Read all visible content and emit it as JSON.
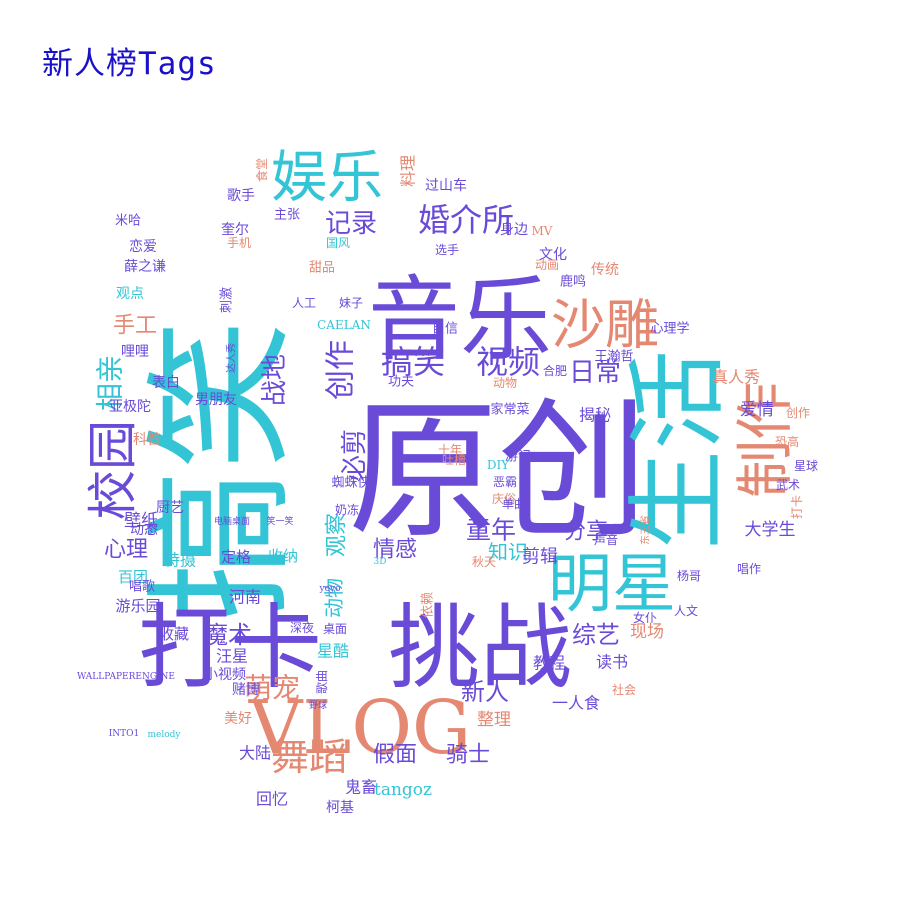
{
  "title": "新人榜Tags",
  "colors": {
    "title": "#1a10c8",
    "purple": "#6a4bd8",
    "cyan": "#33c4d6",
    "salmon": "#e58872"
  },
  "words": [
    {
      "text": "原创",
      "color": "purple"
    },
    {
      "text": "搞笑",
      "color": "cyan"
    },
    {
      "text": "生活",
      "color": "cyan"
    },
    {
      "text": "打卡",
      "color": "purple"
    },
    {
      "text": "挑战",
      "color": "purple"
    },
    {
      "text": "音乐",
      "color": "purple"
    },
    {
      "text": "VLOG",
      "color": "salmon"
    },
    {
      "text": "娱乐",
      "color": "cyan"
    },
    {
      "text": "明星",
      "color": "cyan"
    },
    {
      "text": "沙雕",
      "color": "salmon"
    },
    {
      "text": "制作",
      "color": "salmon"
    },
    {
      "text": "舞蹈",
      "color": "salmon"
    },
    {
      "text": "校园",
      "color": "purple"
    },
    {
      "text": "婚介所",
      "color": "purple"
    },
    {
      "text": "视频",
      "color": "purple"
    },
    {
      "text": "搞笑",
      "color": "purple"
    },
    {
      "text": "记录",
      "color": "purple"
    },
    {
      "text": "相亲",
      "color": "cyan"
    },
    {
      "text": "日常",
      "color": "purple"
    },
    {
      "text": "创作",
      "color": "purple"
    },
    {
      "text": "萌宠",
      "color": "salmon"
    },
    {
      "text": "童年",
      "color": "purple"
    },
    {
      "text": "综艺",
      "color": "purple"
    },
    {
      "text": "魔术",
      "color": "purple"
    },
    {
      "text": "手工",
      "color": "salmon"
    },
    {
      "text": "必剪",
      "color": "purple"
    },
    {
      "text": "战地",
      "color": "purple"
    },
    {
      "text": "心理",
      "color": "purple"
    },
    {
      "text": "情感",
      "color": "purple"
    },
    {
      "text": "新人",
      "color": "purple"
    },
    {
      "text": "假面",
      "color": "purple"
    },
    {
      "text": "骑士",
      "color": "purple"
    },
    {
      "text": "观察",
      "color": "cyan"
    },
    {
      "text": "知识",
      "color": "cyan"
    },
    {
      "text": "分享",
      "color": "purple"
    },
    {
      "text": "动物",
      "color": "cyan"
    },
    {
      "text": "现场",
      "color": "salmon"
    },
    {
      "text": "剪辑",
      "color": "purple"
    },
    {
      "text": "tangoz",
      "color": "cyan"
    },
    {
      "text": "整理",
      "color": "salmon"
    },
    {
      "text": "大学生",
      "color": "purple"
    },
    {
      "text": "爱情",
      "color": "purple"
    },
    {
      "text": "真人秀",
      "color": "salmon"
    },
    {
      "text": "揭秘",
      "color": "purple"
    },
    {
      "text": "壁纸",
      "color": "purple"
    },
    {
      "text": "特摄",
      "color": "cyan"
    },
    {
      "text": "河南",
      "color": "purple"
    },
    {
      "text": "汪星",
      "color": "purple"
    },
    {
      "text": "星酷",
      "color": "cyan"
    },
    {
      "text": "教程",
      "color": "purple"
    },
    {
      "text": "一人食",
      "color": "purple"
    },
    {
      "text": "读书",
      "color": "purple"
    },
    {
      "text": "鬼畜",
      "color": "purple"
    },
    {
      "text": "回忆",
      "color": "purple"
    },
    {
      "text": "柯基",
      "color": "purple"
    },
    {
      "text": "大陆",
      "color": "purple"
    },
    {
      "text": "美好",
      "color": "salmon"
    },
    {
      "text": "赌博",
      "color": "purple"
    },
    {
      "text": "小视频",
      "color": "purple"
    },
    {
      "text": "收藏",
      "color": "purple"
    },
    {
      "text": "游乐园",
      "color": "purple"
    },
    {
      "text": "百团",
      "color": "cyan"
    },
    {
      "text": "定格",
      "color": "purple"
    },
    {
      "text": "收纳",
      "color": "cyan"
    },
    {
      "text": "厨艺",
      "color": "purple"
    },
    {
      "text": "动态",
      "color": "purple"
    },
    {
      "text": "科普",
      "color": "salmon"
    },
    {
      "text": "亚极陀",
      "color": "purple"
    },
    {
      "text": "表白",
      "color": "purple"
    },
    {
      "text": "男朋友",
      "color": "purple"
    },
    {
      "text": "哩哩",
      "color": "purple"
    },
    {
      "text": "观点",
      "color": "cyan"
    },
    {
      "text": "恋爱",
      "color": "purple"
    },
    {
      "text": "薛之谦",
      "color": "purple"
    },
    {
      "text": "米哈",
      "color": "purple"
    },
    {
      "text": "奎尔",
      "color": "purple"
    },
    {
      "text": "手机",
      "color": "salmon"
    },
    {
      "text": "歌手",
      "color": "purple"
    },
    {
      "text": "主张",
      "color": "purple"
    },
    {
      "text": "食堂",
      "color": "salmon"
    },
    {
      "text": "料理",
      "color": "salmon"
    },
    {
      "text": "过山车",
      "color": "purple"
    },
    {
      "text": "身边",
      "color": "purple"
    },
    {
      "text": "文化",
      "color": "purple"
    },
    {
      "text": "鹿鸣",
      "color": "purple"
    },
    {
      "text": "传统",
      "color": "salmon"
    },
    {
      "text": "心理学",
      "color": "purple"
    },
    {
      "text": "王瀚哲",
      "color": "purple"
    },
    {
      "text": "合肥",
      "color": "purple"
    },
    {
      "text": "游记",
      "color": "purple"
    },
    {
      "text": "家常菜",
      "color": "purple"
    },
    {
      "text": "功夫",
      "color": "purple"
    },
    {
      "text": "动物",
      "color": "salmon"
    },
    {
      "text": "自信",
      "color": "purple"
    },
    {
      "text": "动画",
      "color": "salmon"
    },
    {
      "text": "MV",
      "color": "salmon"
    },
    {
      "text": "CAELAN",
      "color": "cyan"
    },
    {
      "text": "妹子",
      "color": "purple"
    },
    {
      "text": "人工",
      "color": "purple"
    },
    {
      "text": "甜品",
      "color": "salmon"
    },
    {
      "text": "国风",
      "color": "cyan"
    },
    {
      "text": "刺激",
      "color": "purple"
    },
    {
      "text": "蜘蛛侠",
      "color": "purple"
    },
    {
      "text": "奶冻",
      "color": "purple"
    },
    {
      "text": "DIY",
      "color": "cyan"
    },
    {
      "text": "恶霸",
      "color": "purple"
    },
    {
      "text": "庆俗",
      "color": "salmon"
    },
    {
      "text": "单曲",
      "color": "purple"
    },
    {
      "text": "吐槽",
      "color": "salmon"
    },
    {
      "text": "秋天",
      "color": "salmon"
    },
    {
      "text": "依赖",
      "color": "salmon"
    },
    {
      "text": "桌面",
      "color": "purple"
    },
    {
      "text": "深夜",
      "color": "purple"
    },
    {
      "text": "歌曲",
      "color": "purple"
    },
    {
      "text": "声音",
      "color": "purple"
    },
    {
      "text": "唱作",
      "color": "purple"
    },
    {
      "text": "杨哥",
      "color": "purple"
    },
    {
      "text": "人文",
      "color": "purple"
    },
    {
      "text": "女仆",
      "color": "purple"
    },
    {
      "text": "社会",
      "color": "salmon"
    },
    {
      "text": "恐高",
      "color": "salmon"
    },
    {
      "text": "星球",
      "color": "purple"
    },
    {
      "text": "武术",
      "color": "purple"
    },
    {
      "text": "创作",
      "color": "salmon"
    },
    {
      "text": "打卡",
      "color": "salmon"
    },
    {
      "text": "唱歌",
      "color": "purple"
    },
    {
      "text": "选手",
      "color": "purple"
    },
    {
      "text": "3D",
      "color": "cyan"
    },
    {
      "text": "WALLPAPERENGINE",
      "color": "purple"
    },
    {
      "text": "INTO1",
      "color": "purple"
    },
    {
      "text": "melody",
      "color": "cyan"
    },
    {
      "text": "东三省",
      "color": "salmon"
    },
    {
      "text": "yoyo",
      "color": "purple"
    },
    {
      "text": "野球",
      "color": "purple"
    },
    {
      "text": "达人秀",
      "color": "purple"
    },
    {
      "text": "电脑桌面",
      "color": "purple"
    },
    {
      "text": "笑一笑",
      "color": "purple"
    },
    {
      "text": "十年",
      "color": "salmon"
    }
  ]
}
